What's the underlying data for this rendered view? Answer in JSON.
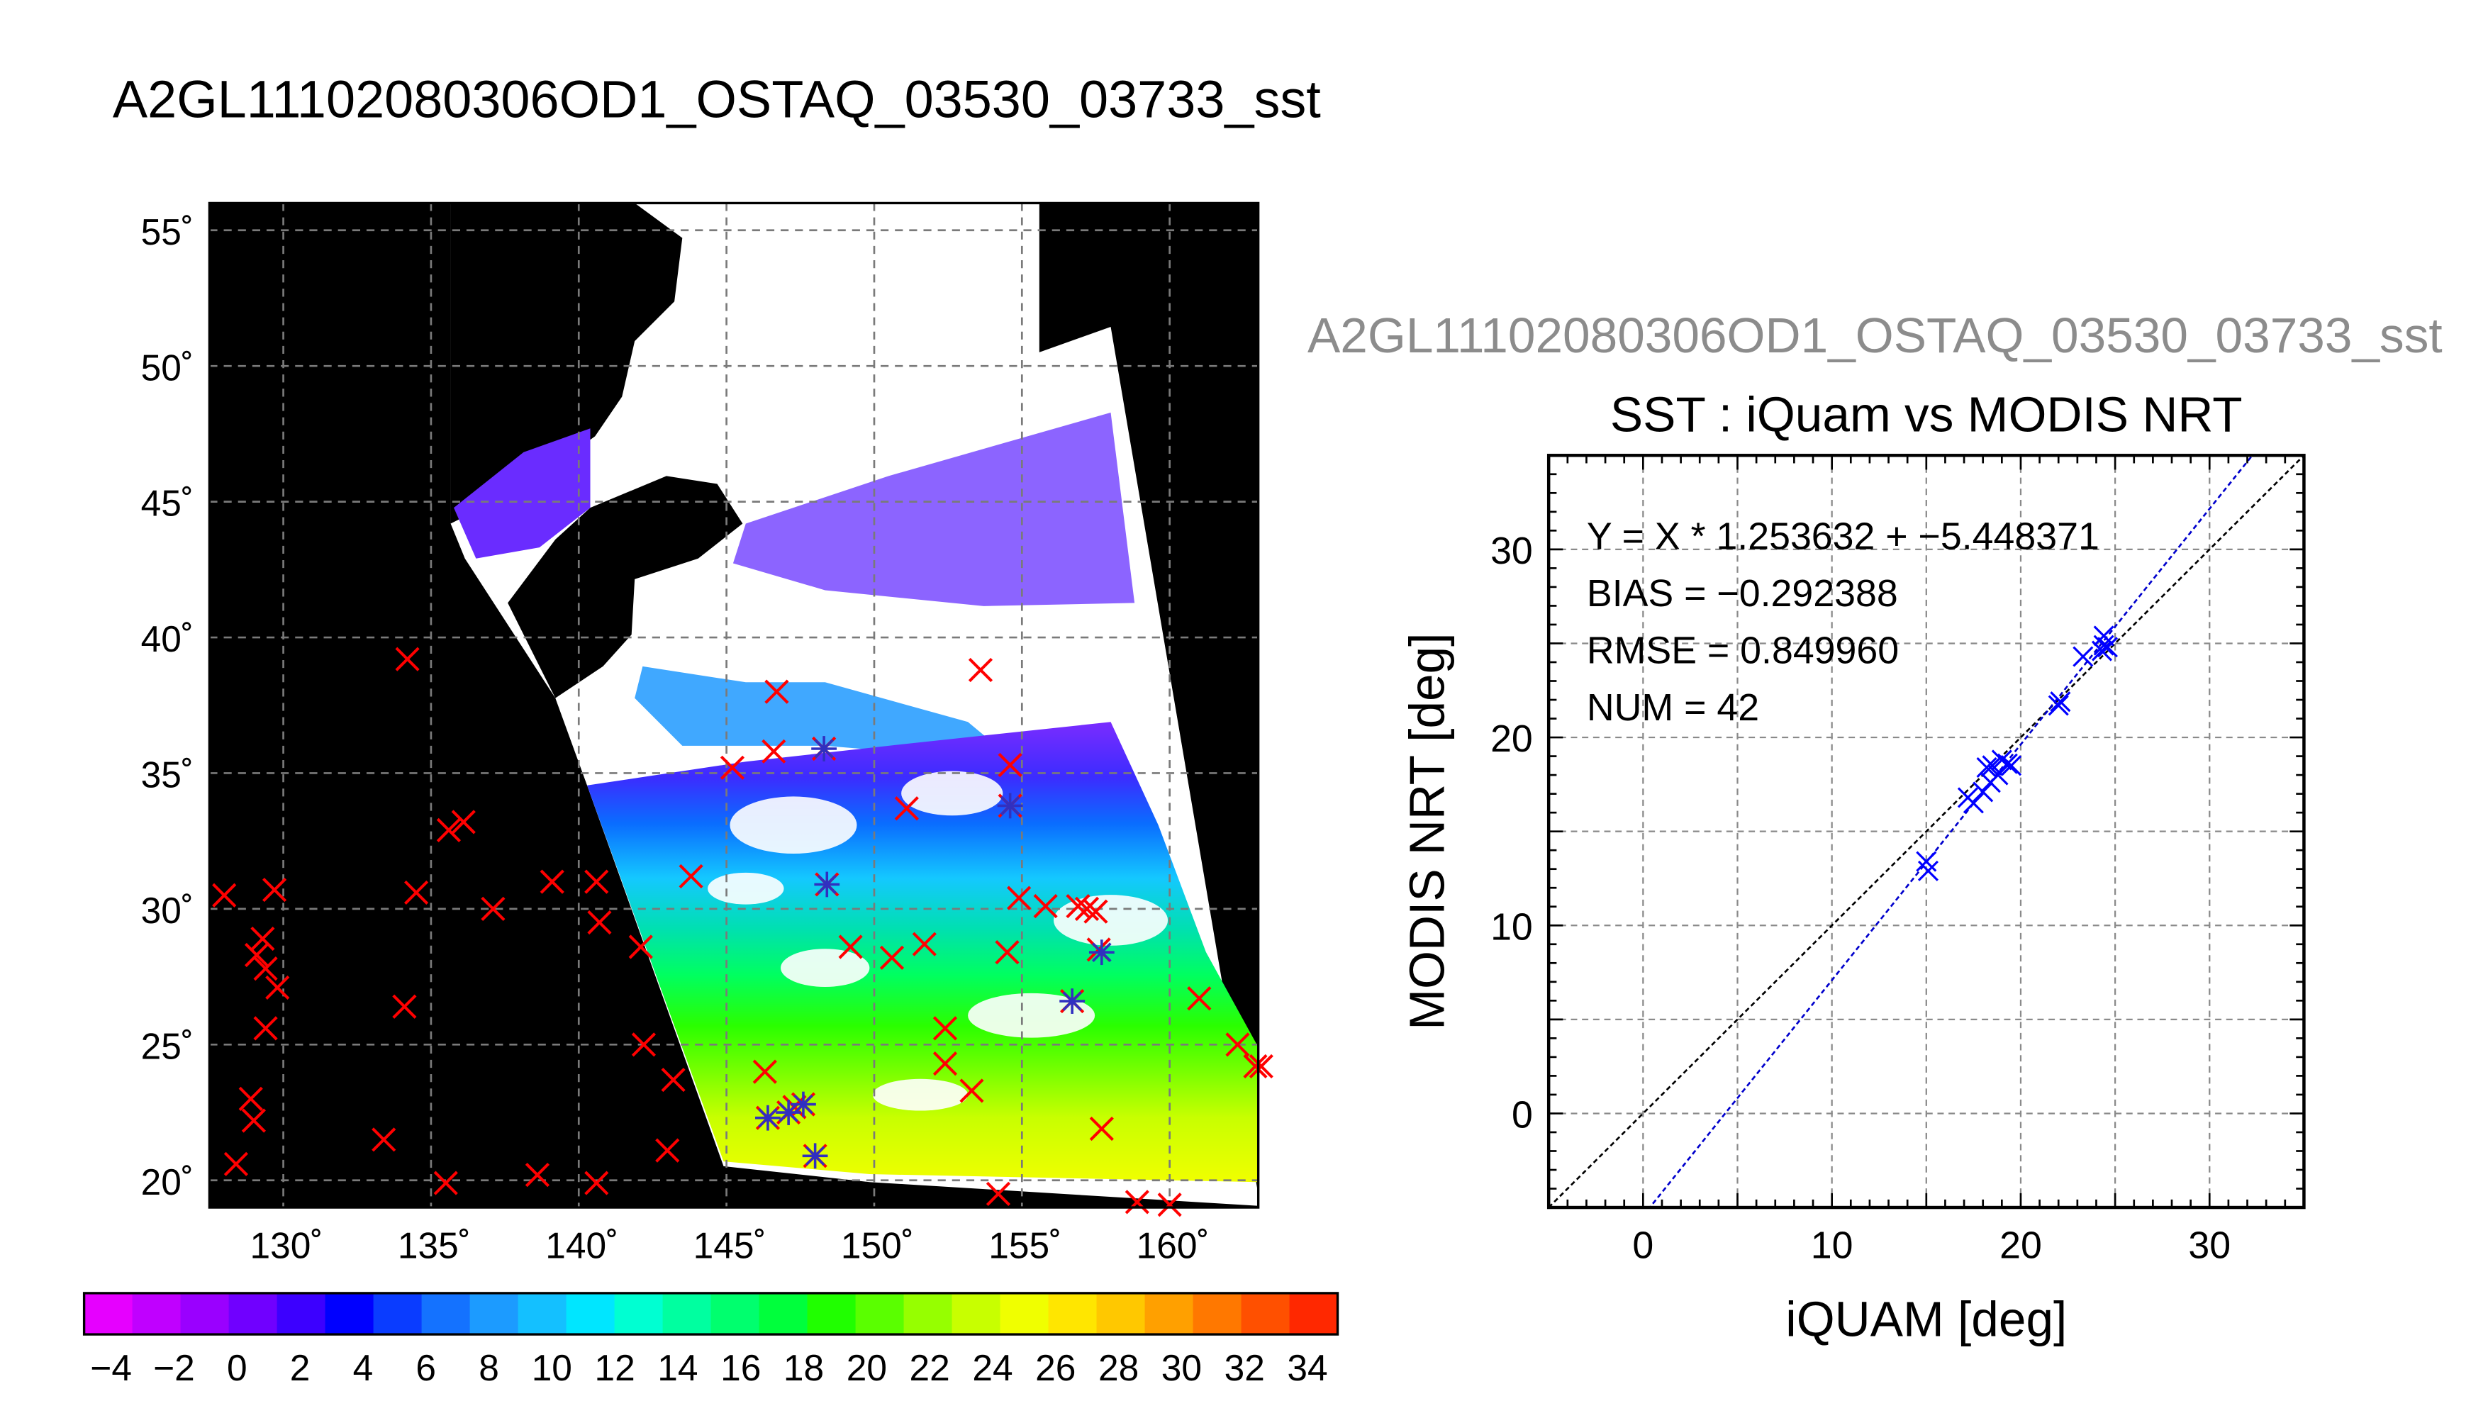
{
  "page": {
    "title": "A2GL11102080306OD1_OSTAQ_03530_03733_sst"
  },
  "chart_data": [
    {
      "type": "map",
      "title": "A2GL11102080306OD1_OSTAQ_03530_03733_sst",
      "x_ticks": [
        "130˚",
        "135˚",
        "140˚",
        "145˚",
        "150˚",
        "155˚",
        "160˚"
      ],
      "y_ticks": [
        "20˚",
        "25˚",
        "30˚",
        "35˚",
        "40˚",
        "45˚",
        "50˚",
        "55˚"
      ],
      "xlim": [
        127.5,
        163
      ],
      "ylim": [
        19,
        56
      ],
      "grid": true,
      "colorbar": {
        "ticks": [
          "−4",
          "−2",
          "0",
          "2",
          "4",
          "6",
          "8",
          "10",
          "12",
          "14",
          "16",
          "18",
          "20",
          "22",
          "24",
          "26",
          "28",
          "30",
          "32",
          "34"
        ],
        "colors": [
          "#e600ff",
          "#c000ff",
          "#9a00ff",
          "#7000ff",
          "#3c00ff",
          "#0000ff",
          "#0a3cff",
          "#1472ff",
          "#1c9bff",
          "#14c0ff",
          "#00e6ff",
          "#00ffd2",
          "#00ffa0",
          "#00ff6e",
          "#00ff3c",
          "#20ff00",
          "#5aff00",
          "#96ff00",
          "#c8ff00",
          "#f0ff00",
          "#ffe600",
          "#ffc800",
          "#ffa000",
          "#ff7800",
          "#ff5000",
          "#ff2800"
        ]
      },
      "marker_legend": "",
      "iquam_points": [
        [
          134.2,
          39.2
        ],
        [
          128,
          30.5
        ],
        [
          129.7,
          30.7
        ],
        [
          129.3,
          28.9
        ],
        [
          129.1,
          28.3
        ],
        [
          129.4,
          27.8
        ],
        [
          129.8,
          27.1
        ],
        [
          129.4,
          25.6
        ],
        [
          128.9,
          23
        ],
        [
          129,
          22.2
        ],
        [
          128.4,
          20.6
        ],
        [
          134.1,
          26.4
        ],
        [
          134.5,
          30.6
        ],
        [
          135.6,
          32.9
        ],
        [
          136.1,
          33.2
        ],
        [
          133.4,
          21.5
        ],
        [
          135.5,
          19.9
        ],
        [
          137.1,
          30
        ],
        [
          138.6,
          20.2
        ],
        [
          139.1,
          31
        ],
        [
          140.6,
          31
        ],
        [
          140.7,
          29.5
        ],
        [
          140.6,
          19.9
        ],
        [
          142.1,
          28.6
        ],
        [
          142.2,
          25
        ],
        [
          143.2,
          23.7
        ],
        [
          143,
          21.1
        ],
        [
          143.8,
          31.2
        ],
        [
          145.2,
          35.2
        ],
        [
          146.3,
          24
        ],
        [
          146.4,
          22.3
        ],
        [
          146.6,
          35.8
        ],
        [
          146.7,
          38
        ],
        [
          147.1,
          22.5
        ],
        [
          147.3,
          22.7
        ],
        [
          147.6,
          22.8
        ],
        [
          148,
          20.9
        ],
        [
          148.3,
          35.9
        ],
        [
          148.4,
          30.9
        ],
        [
          149.2,
          28.6
        ],
        [
          150.6,
          28.2
        ],
        [
          151.1,
          33.7
        ],
        [
          151.7,
          28.7
        ],
        [
          152.4,
          25.6
        ],
        [
          152.4,
          24.3
        ],
        [
          153.3,
          23.3
        ],
        [
          153.6,
          38.8
        ],
        [
          154.2,
          19.5
        ],
        [
          154.5,
          28.4
        ],
        [
          154.6,
          35.3
        ],
        [
          154.6,
          33.8
        ],
        [
          154.9,
          30.4
        ],
        [
          155.8,
          30.1
        ],
        [
          156.7,
          26.6
        ],
        [
          156.9,
          30.1
        ],
        [
          157.2,
          30
        ],
        [
          157.5,
          29.9
        ],
        [
          157.6,
          28.5
        ],
        [
          157.7,
          21.9
        ],
        [
          158.9,
          19.2
        ],
        [
          160,
          19.1
        ],
        [
          161,
          26.7
        ],
        [
          162.3,
          25
        ],
        [
          162.9,
          24.2
        ],
        [
          163.1,
          24.2
        ]
      ],
      "matchup_points": [
        [
          148.3,
          35.9
        ],
        [
          148.4,
          30.9
        ],
        [
          146.4,
          22.3
        ],
        [
          147.1,
          22.5
        ],
        [
          147.6,
          22.8
        ],
        [
          148,
          20.9
        ],
        [
          154.6,
          33.8
        ],
        [
          156.7,
          26.6
        ],
        [
          157.7,
          28.4
        ]
      ]
    },
    {
      "type": "scatter",
      "subtitle": "A2GL11102080306OD1_OSTAQ_03530_03733_sst",
      "title": "SST : iQuam vs MODIS NRT",
      "xlabel": "iQUAM [deg]",
      "ylabel": "MODIS NRT [deg]",
      "xlim": [
        -5,
        35
      ],
      "ylim": [
        -5,
        35
      ],
      "x_ticks": [
        0,
        10,
        20,
        30
      ],
      "y_ticks": [
        0,
        10,
        20,
        30
      ],
      "grid": true,
      "stats": [
        "Y = X * 1.253632 + −5.448371",
        "BIAS = −0.292388",
        "RMSE = 0.849960",
        "NUM = 42"
      ],
      "regression": {
        "slope": 1.253632,
        "intercept": -5.448371,
        "color": "#0000cc"
      },
      "identity_line": {
        "color": "#000000"
      },
      "marker_color": "#0000ff",
      "points": [
        [
          15.0,
          13.4
        ],
        [
          15.1,
          12.9
        ],
        [
          17.2,
          16.8
        ],
        [
          17.5,
          16.5
        ],
        [
          18.0,
          17.1
        ],
        [
          18.2,
          18.4
        ],
        [
          18.4,
          17.6
        ],
        [
          18.5,
          18.5
        ],
        [
          18.8,
          18.0
        ],
        [
          19.0,
          18.8
        ],
        [
          19.3,
          18.6
        ],
        [
          19.5,
          18.5
        ],
        [
          22.0,
          21.7
        ],
        [
          22.1,
          21.9
        ],
        [
          23.3,
          24.3
        ],
        [
          24.3,
          24.6
        ],
        [
          24.4,
          25.4
        ],
        [
          24.4,
          24.9
        ],
        [
          24.6,
          24.8
        ]
      ]
    }
  ]
}
